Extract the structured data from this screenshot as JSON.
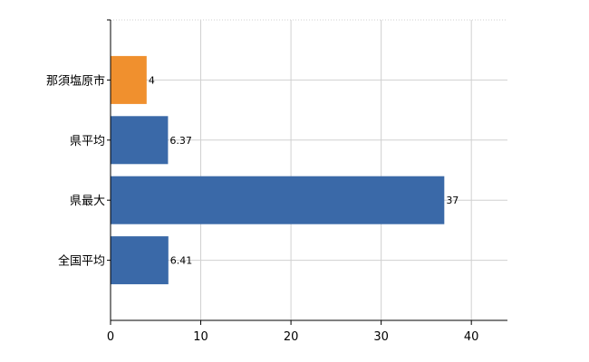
{
  "chart_data": {
    "type": "bar",
    "orientation": "horizontal",
    "categories": [
      "那須塩原市",
      "県平均",
      "県最大",
      "全国平均"
    ],
    "values": [
      4,
      6.37,
      37,
      6.41
    ],
    "value_labels": [
      "4",
      "6.37",
      "37",
      "6.41"
    ],
    "colors": [
      "#f0902e",
      "#3a69a8",
      "#3a69a8",
      "#3a69a8"
    ],
    "xlim": [
      0,
      44
    ],
    "xticks": [
      0,
      10,
      20,
      30,
      40
    ],
    "xtick_labels": [
      "0",
      "10",
      "20",
      "30",
      "40"
    ],
    "title": "",
    "xlabel": "",
    "ylabel": "",
    "grid": true
  }
}
